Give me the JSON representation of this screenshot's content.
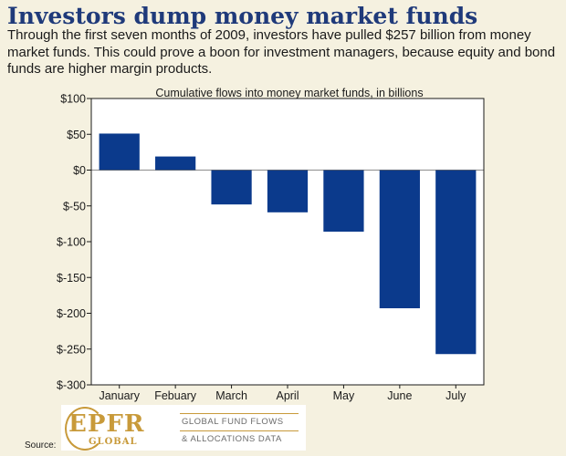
{
  "header": {
    "title": "Investors dump money market funds",
    "subtitle": "Through the first seven months of 2009, investors have pulled $257 billion from money market funds. This could prove a boon for investment managers, because equity and bond funds are higher margin products."
  },
  "chart_data": {
    "type": "bar",
    "title": "Cumulative flows into money market funds, in billions",
    "categories": [
      "January",
      "Febuary",
      "March",
      "April",
      "May",
      "June",
      "July"
    ],
    "values": [
      51,
      19,
      -48,
      -59,
      -86,
      -193,
      -257
    ],
    "ylim": [
      -300,
      100
    ],
    "yticks": [
      100,
      50,
      0,
      -50,
      -100,
      -150,
      -200,
      -250,
      -300
    ],
    "ytick_labels": [
      "$100",
      "$50",
      "$0",
      "$-50",
      "$-100",
      "$-150",
      "$-200",
      "$-250",
      "$-300"
    ],
    "bar_color": "#0b3a8c",
    "grid": false
  },
  "footer": {
    "source_label": "Source:",
    "logo": {
      "mark": "EPFR",
      "sub": "GLOBAL",
      "line1": "GLOBAL FUND FLOWS",
      "line2": "& ALLOCATIONS DATA"
    }
  },
  "colors": {
    "background": "#f5f1e0",
    "title": "#1f3a7a",
    "logo_gold": "#c89a3a"
  }
}
